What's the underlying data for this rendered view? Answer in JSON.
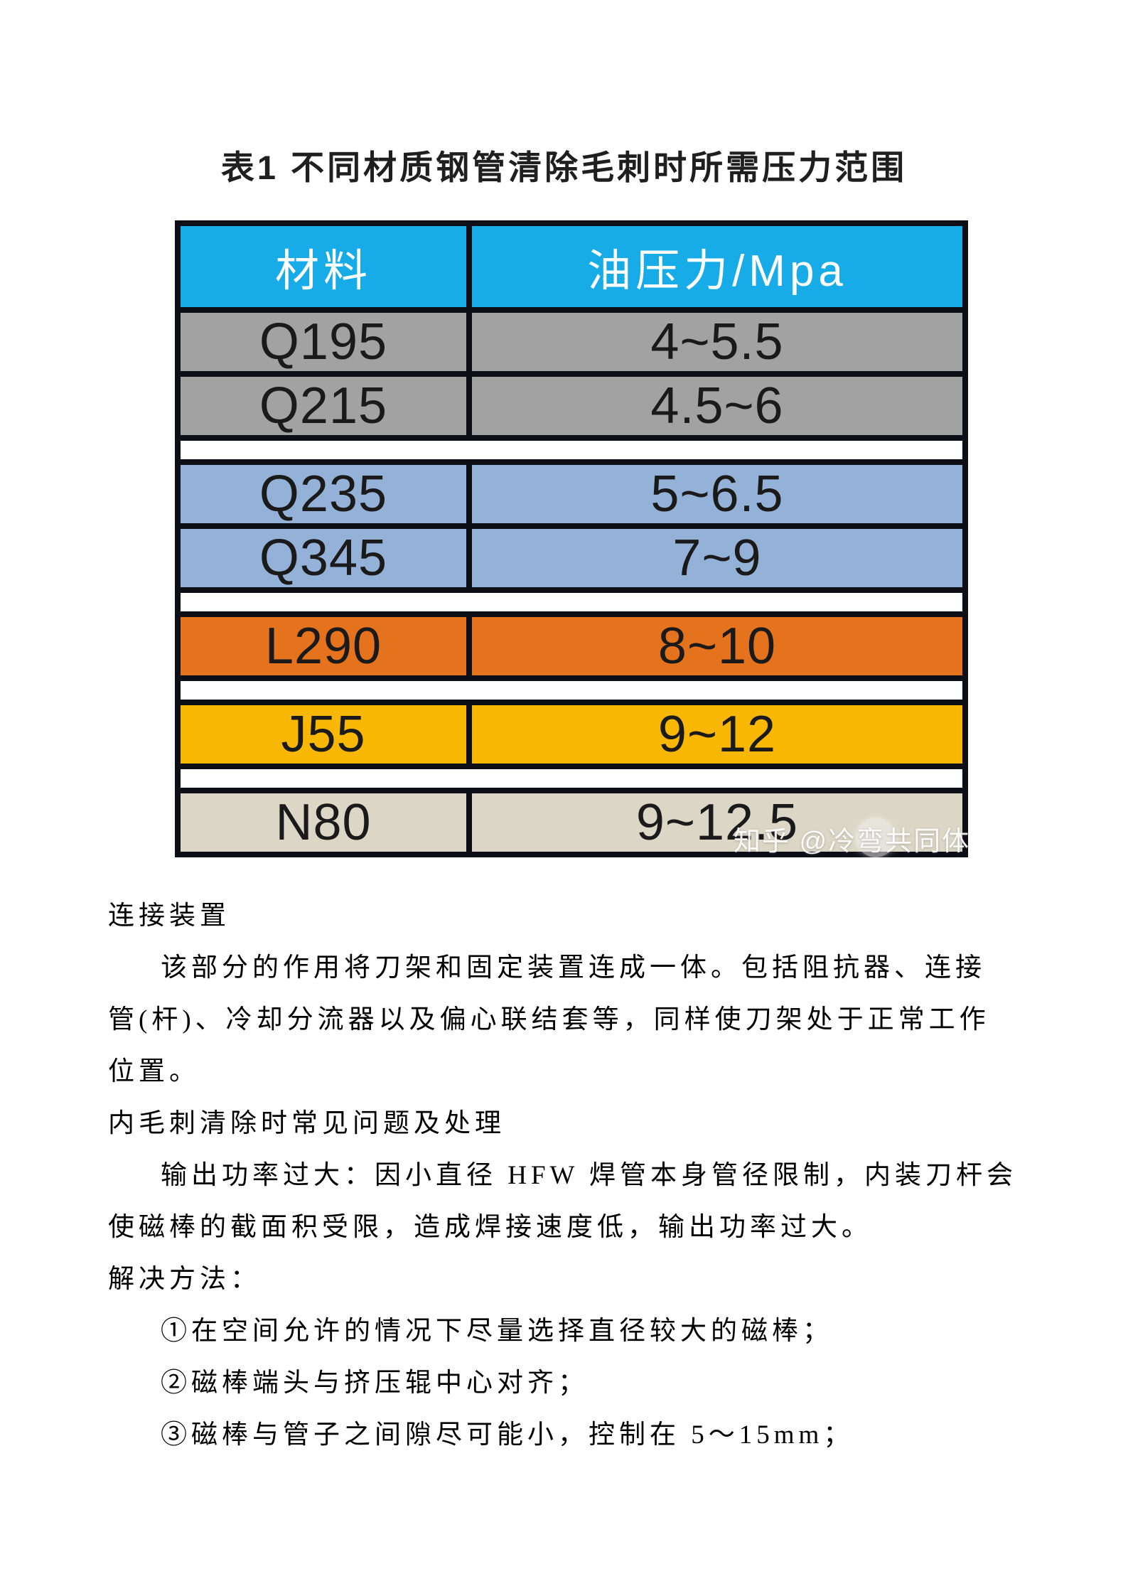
{
  "title": "表1 不同材质钢管清除毛刺时所需压力范围",
  "table": {
    "headers": {
      "material": "材料",
      "pressure": "油压力/Mpa"
    },
    "rows": [
      {
        "material": "Q195",
        "pressure": "4~5.5",
        "bg": "#A2A2A2"
      },
      {
        "material": "Q215",
        "pressure": "4.5~6",
        "bg": "#A2A2A2"
      },
      {
        "material": "Q235",
        "pressure": "5~6.5",
        "bg": "#94B2D7"
      },
      {
        "material": "Q345",
        "pressure": "7~9",
        "bg": "#94B2D7"
      },
      {
        "material": "L290",
        "pressure": "8~10",
        "bg": "#E5721C"
      },
      {
        "material": "J55",
        "pressure": "9~12",
        "bg": "#F8B703"
      },
      {
        "material": "N80",
        "pressure": "9~12.5",
        "bg": "#DBD6C5"
      }
    ],
    "colors": {
      "header_bg": "#17ACE8",
      "header_text": "#FFFFFF",
      "border": "#0E0E16",
      "cell_text": "#1A1A1A",
      "spacer_bg": "#FFFFFF"
    }
  },
  "watermark": {
    "text": "知乎 @冷弯共同体"
  },
  "body": {
    "lines": [
      {
        "text": "连接装置"
      },
      {
        "text": "该部分的作用将刀架和固定装置连成一体。包括阻抗器、连接"
      },
      {
        "text": "管(杆)、冷却分流器以及偏心联结套等，同样使刀架处于正常工作"
      },
      {
        "text": "位置。"
      },
      {
        "text": "内毛刺清除时常见问题及处理"
      },
      {
        "text": "输出功率过大：因小直径 HFW 焊管本身管径限制，内装刀杆会"
      },
      {
        "text": "使磁棒的截面积受限，造成焊接速度低，输出功率过大。"
      },
      {
        "text": "解决方法："
      },
      {
        "text": "①在空间允许的情况下尽量选择直径较大的磁棒；"
      },
      {
        "text": "②磁棒端头与挤压辊中心对齐；"
      },
      {
        "text": "③磁棒与管子之间隙尽可能小，控制在 5～15mm；"
      }
    ]
  }
}
